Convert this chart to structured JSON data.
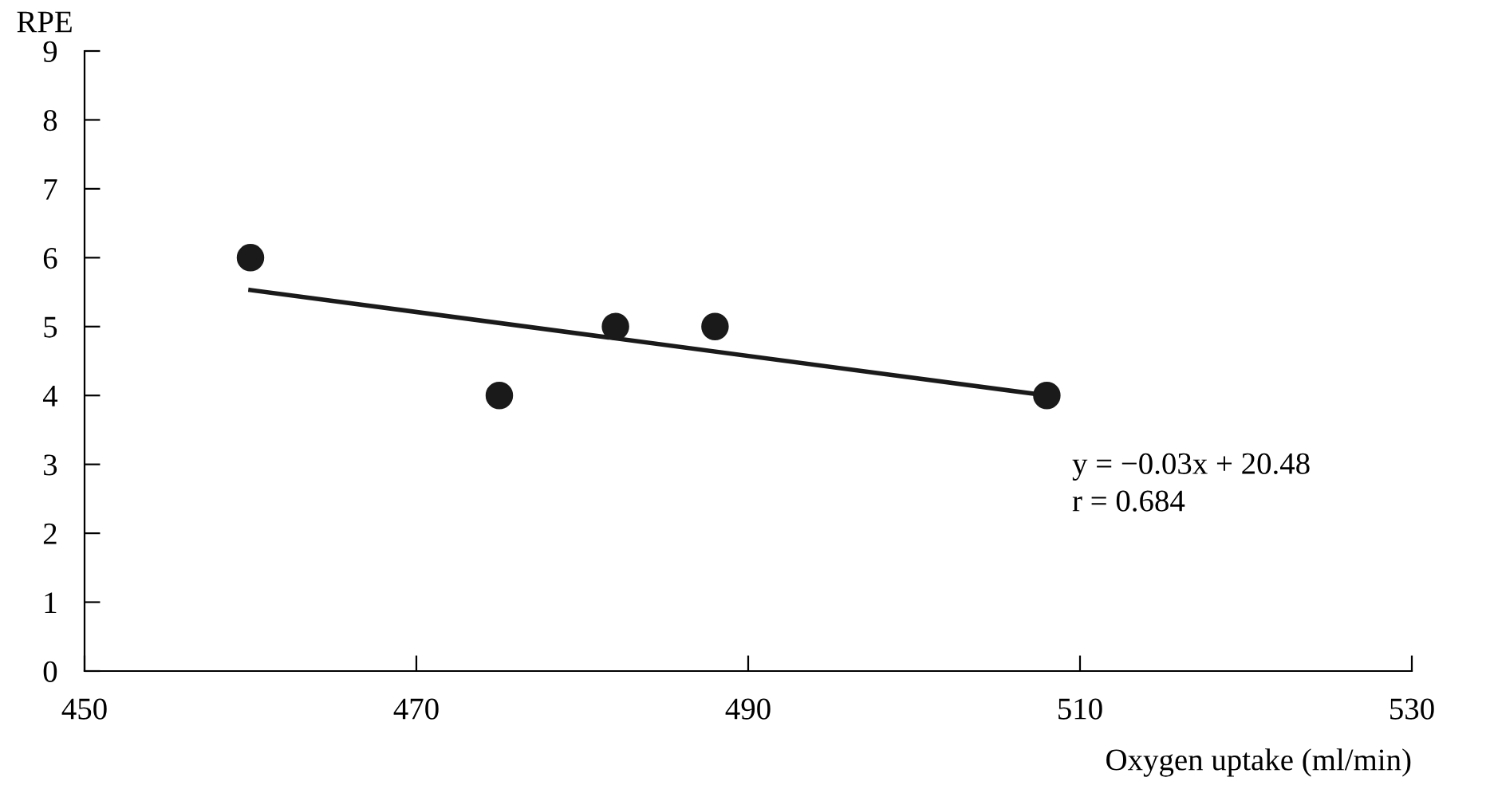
{
  "chart_data": {
    "type": "scatter",
    "xlabel": "Oxygen uptake (ml/min)",
    "ylabel": "RPE",
    "series": [
      {
        "color": "#1a1a1a",
        "x": [
          460,
          475,
          482,
          488,
          508
        ],
        "values": [
          6,
          4,
          5,
          5,
          4
        ],
        "marker": "circle"
      },
      {
        "type": "line",
        "color": "#1a1a1a",
        "x": [
          460,
          508
        ],
        "values": [
          5.53,
          4.0
        ],
        "marker": "none",
        "line_style": "solid"
      }
    ],
    "xlim": [
      450,
      530
    ],
    "ylim": [
      0,
      9
    ],
    "xticks": [
      450,
      470,
      490,
      510,
      530
    ],
    "yticks": [
      0,
      1,
      2,
      3,
      4,
      5,
      6,
      7,
      8,
      9
    ],
    "grid": false,
    "legend": false,
    "annotations": [
      "y = −0.03x + 20.48",
      "r = 0.684"
    ]
  }
}
